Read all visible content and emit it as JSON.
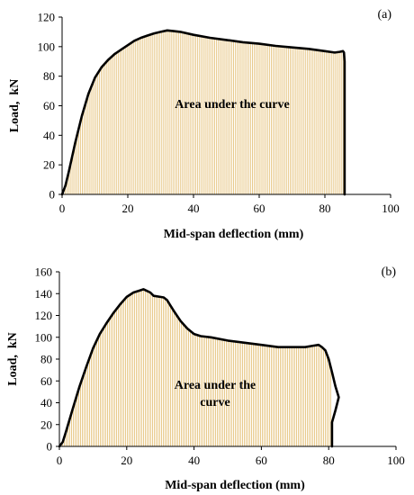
{
  "chart_data": [
    {
      "type": "area",
      "panel_label": "(a)",
      "xlabel": "Mid-span deflection (mm)",
      "ylabel": "Load,  kN",
      "xlim": [
        0,
        100
      ],
      "ylim": [
        0,
        120
      ],
      "xticks": [
        0,
        20,
        40,
        60,
        80,
        100
      ],
      "yticks": [
        0,
        20,
        40,
        60,
        80,
        100,
        120
      ],
      "annotation": [
        "Area under the curve"
      ],
      "hatch_color": "#e8c98a",
      "series": [
        {
          "x": [
            0,
            1,
            2,
            4,
            6,
            8,
            10,
            12,
            14,
            16,
            18,
            20,
            22,
            24,
            26,
            28,
            30,
            32,
            34,
            36,
            40,
            45,
            50,
            55,
            60,
            65,
            70,
            75,
            80,
            83,
            84.5,
            85.5,
            85.8,
            86,
            86
          ],
          "y": [
            0,
            6,
            15,
            35,
            53,
            68,
            79,
            86,
            91,
            95,
            98,
            101,
            104,
            106,
            107.5,
            109,
            110,
            111,
            110.5,
            110,
            108,
            106,
            104.5,
            103,
            102,
            100.5,
            99.5,
            98.5,
            97,
            96,
            96.5,
            97,
            96,
            90,
            0
          ]
        }
      ]
    },
    {
      "type": "area",
      "panel_label": "(b)",
      "xlabel": "Mid-span deflection (mm)",
      "ylabel": "Load,  kN",
      "xlim": [
        0,
        100
      ],
      "ylim": [
        0,
        160
      ],
      "xticks": [
        0,
        20,
        40,
        60,
        80,
        100
      ],
      "yticks": [
        0,
        20,
        40,
        60,
        80,
        100,
        120,
        140,
        160
      ],
      "annotation": [
        "Area under the",
        "curve"
      ],
      "hatch_color": "#e8c98a",
      "series": [
        {
          "x": [
            0,
            1,
            2,
            4,
            6,
            8,
            10,
            12,
            14,
            16,
            18,
            20,
            22,
            24,
            25,
            26,
            27,
            28,
            30,
            31,
            32,
            33,
            34,
            36,
            38,
            40,
            42,
            45,
            50,
            55,
            60,
            65,
            70,
            73,
            75,
            77,
            78,
            79,
            80,
            81,
            82,
            83,
            82,
            81,
            81
          ],
          "y": [
            0,
            4,
            14,
            35,
            55,
            73,
            90,
            103,
            113,
            122,
            130,
            137,
            141,
            143,
            144,
            142.5,
            141,
            138,
            137,
            136.5,
            134,
            129,
            124,
            115,
            108,
            103,
            101,
            100,
            97,
            95,
            93,
            91,
            91,
            91,
            92,
            93,
            91,
            88,
            80,
            68,
            55,
            45,
            33,
            22,
            0
          ]
        }
      ]
    }
  ]
}
